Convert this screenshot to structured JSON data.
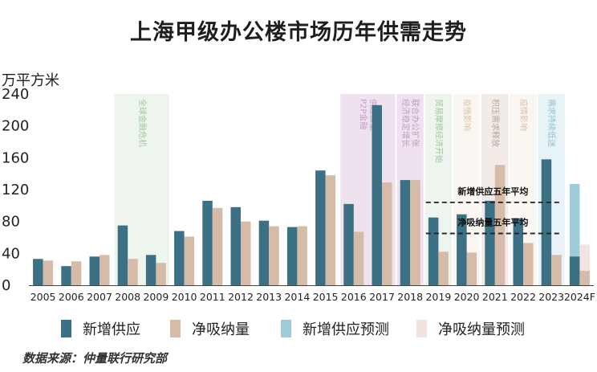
{
  "title": "上海甲级办公楼市场历年供需走势",
  "source": "数据来源：仲量联行研究部",
  "chart_data": {
    "type": "bar",
    "ylabel": "万平方米",
    "ylim": [
      0,
      240
    ],
    "yticks": [
      "0",
      "40",
      "80",
      "120",
      "160",
      "200",
      "240"
    ],
    "categories": [
      "2005",
      "2006",
      "2007",
      "2008",
      "2009",
      "2010",
      "2011",
      "2012",
      "2013",
      "2014",
      "2015",
      "2016",
      "2017",
      "2018",
      "2019",
      "2020",
      "2021",
      "2022",
      "2023",
      "2024F"
    ],
    "series": [
      {
        "name": "新增供应",
        "color": "#3b7085",
        "values": [
          33,
          24,
          36,
          75,
          38,
          68,
          106,
          98,
          81,
          73,
          144,
          102,
          226,
          132,
          85,
          89,
          106,
          84,
          158,
          36
        ]
      },
      {
        "name": "净吸纳量",
        "color": "#d6bba8",
        "values": [
          31,
          30,
          38,
          33,
          28,
          61,
          97,
          80,
          74,
          74,
          138,
          67,
          129,
          132,
          42,
          41,
          151,
          53,
          38,
          18
        ]
      },
      {
        "name": "新增供应预测",
        "color": "#9ecbd8",
        "values": [
          null,
          null,
          null,
          null,
          null,
          null,
          null,
          null,
          null,
          null,
          null,
          null,
          null,
          null,
          null,
          null,
          null,
          null,
          null,
          127
        ]
      },
      {
        "name": "净吸纳量预测",
        "color": "#f0e3e0",
        "values": [
          null,
          null,
          null,
          null,
          null,
          null,
          null,
          null,
          null,
          null,
          null,
          null,
          null,
          null,
          null,
          null,
          null,
          null,
          null,
          51
        ]
      }
    ],
    "bands": [
      {
        "category": "2008",
        "span": 2,
        "color": "#eef5ee",
        "text": "全球金融危机",
        "text_color": "#9fc79f"
      },
      {
        "category": "2016",
        "span": 2,
        "color": "#eee2ee",
        "text": "P2P金融\n供应放量",
        "text_color": "#c39bc6"
      },
      {
        "category": "2018",
        "span": 1,
        "color": "#eee2ee",
        "text": "经济稳定增长\n联合办公扩张",
        "text_color": "#c39bc6"
      },
      {
        "category": "2019",
        "span": 1,
        "color": "#eef5ee",
        "text": "贸易摩擦经济开始",
        "text_color": "#9fc79f"
      },
      {
        "category": "2020",
        "span": 1,
        "color": "#faf6f1",
        "text": "疫情影响",
        "text_color": "#d8c2a8"
      },
      {
        "category": "2021",
        "span": 1,
        "color": "#f2ebe8",
        "text": "积压需求释放",
        "text_color": "#b8a39c"
      },
      {
        "category": "2022",
        "span": 1,
        "color": "#faf6f1",
        "text": "疫情影响",
        "text_color": "#d8c2a8"
      },
      {
        "category": "2023",
        "span": 1,
        "color": "#e8f3f7",
        "text": "需求持续低迷",
        "text_color": "#8fc0d3"
      }
    ],
    "reference_lines": [
      {
        "label": "新增供应五年平均",
        "value": 104,
        "from": "2019",
        "to": "2023"
      },
      {
        "label": "净吸纳量五年平均",
        "value": 65,
        "from": "2019",
        "to": "2023"
      }
    ],
    "grid": false,
    "legend_position": "bottom"
  }
}
